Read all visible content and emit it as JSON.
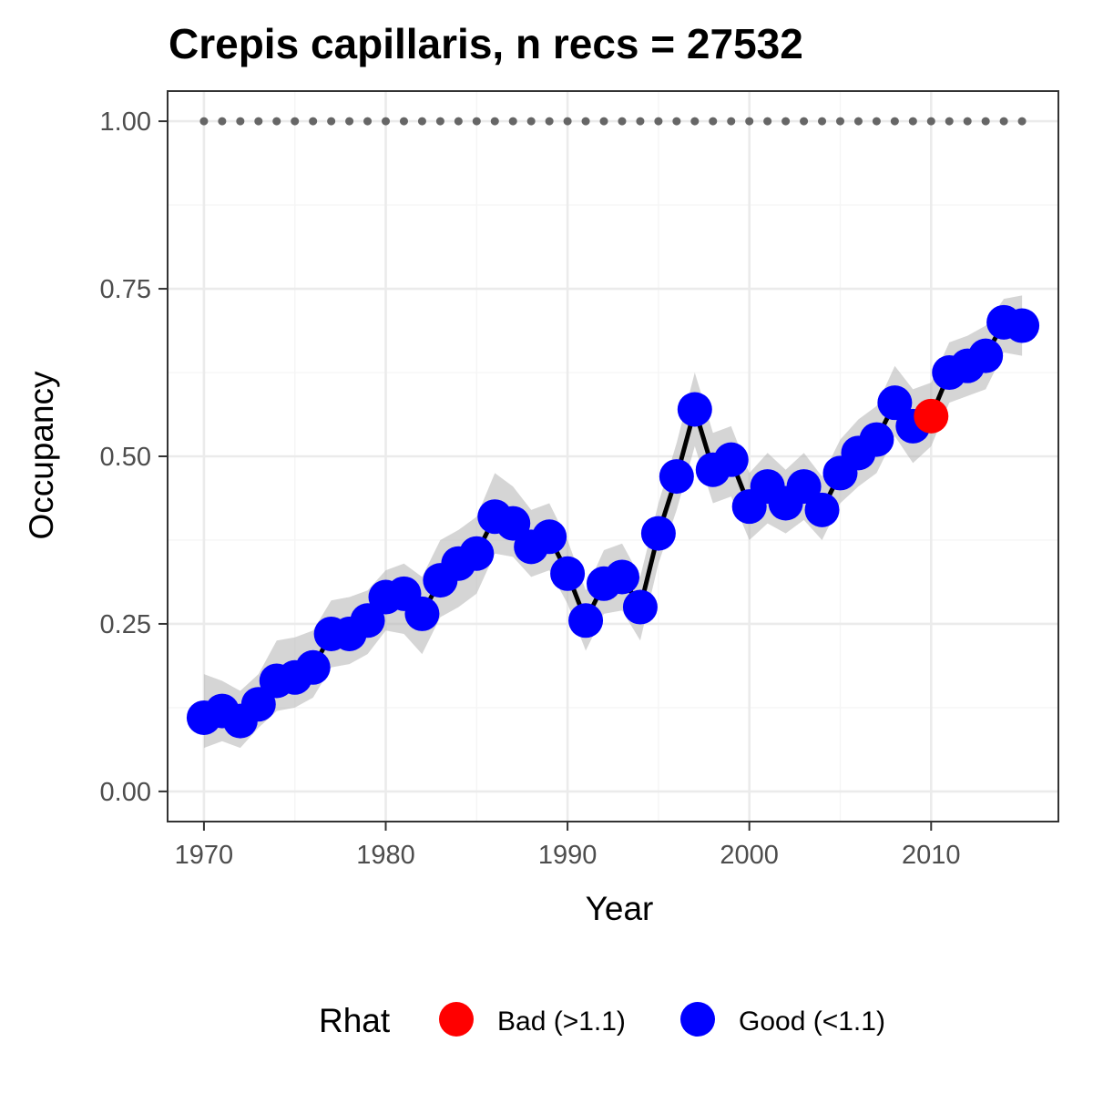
{
  "chart_data": {
    "type": "line",
    "title": "Crepis capillaris, n recs = 27532",
    "xlabel": "Year",
    "ylabel": "Occupancy",
    "xlim": [
      1968,
      2017
    ],
    "ylim": [
      -0.045,
      1.045
    ],
    "x_ticks": [
      "1970",
      "1980",
      "1990",
      "2000",
      "2010"
    ],
    "y_ticks": [
      "0.00",
      "0.25",
      "0.50",
      "0.75",
      "1.00"
    ],
    "grid": true,
    "legend": {
      "title": "Rhat",
      "position": "bottom",
      "entries": [
        {
          "label": "Bad (>1.1)",
          "color": "#ff0000"
        },
        {
          "label": "Good (<1.1)",
          "color": "#0000ff"
        }
      ]
    },
    "reference_line": {
      "y": 1.0,
      "style": "dotted",
      "color": "#666666"
    },
    "series": [
      {
        "x": [
          1970,
          1971,
          1972,
          1973,
          1974,
          1975,
          1976,
          1977,
          1978,
          1979,
          1980,
          1981,
          1982,
          1983,
          1984,
          1985,
          1986,
          1987,
          1988,
          1989,
          1990,
          1991,
          1992,
          1993,
          1994,
          1995,
          1996,
          1997,
          1998,
          1999,
          2000,
          2001,
          2002,
          2003,
          2004,
          2005,
          2006,
          2007,
          2008,
          2009,
          2010,
          2011,
          2012,
          2013,
          2014,
          2015
        ],
        "y": [
          0.11,
          0.12,
          0.105,
          0.13,
          0.165,
          0.17,
          0.185,
          0.235,
          0.235,
          0.255,
          0.29,
          0.295,
          0.265,
          0.315,
          0.34,
          0.355,
          0.41,
          0.4,
          0.365,
          0.38,
          0.325,
          0.255,
          0.31,
          0.32,
          0.275,
          0.385,
          0.47,
          0.57,
          0.48,
          0.495,
          0.425,
          0.455,
          0.43,
          0.455,
          0.42,
          0.475,
          0.505,
          0.525,
          0.58,
          0.545,
          0.56,
          0.625,
          0.635,
          0.65,
          0.7,
          0.695
        ],
        "lower": [
          0.065,
          0.075,
          0.065,
          0.095,
          0.12,
          0.125,
          0.14,
          0.185,
          0.19,
          0.205,
          0.24,
          0.235,
          0.205,
          0.26,
          0.275,
          0.295,
          0.355,
          0.35,
          0.32,
          0.33,
          0.28,
          0.21,
          0.265,
          0.27,
          0.225,
          0.34,
          0.42,
          0.515,
          0.43,
          0.44,
          0.375,
          0.4,
          0.385,
          0.405,
          0.375,
          0.43,
          0.455,
          0.475,
          0.53,
          0.49,
          0.515,
          0.58,
          0.59,
          0.6,
          0.655,
          0.65
        ],
        "upper": [
          0.175,
          0.165,
          0.15,
          0.175,
          0.225,
          0.23,
          0.24,
          0.285,
          0.29,
          0.3,
          0.33,
          0.34,
          0.32,
          0.375,
          0.39,
          0.41,
          0.475,
          0.455,
          0.42,
          0.43,
          0.375,
          0.3,
          0.36,
          0.37,
          0.32,
          0.43,
          0.52,
          0.625,
          0.535,
          0.545,
          0.475,
          0.505,
          0.48,
          0.505,
          0.47,
          0.525,
          0.555,
          0.575,
          0.635,
          0.6,
          0.61,
          0.67,
          0.68,
          0.695,
          0.735,
          0.74
        ],
        "rhat": [
          "Good",
          "Good",
          "Good",
          "Good",
          "Good",
          "Good",
          "Good",
          "Good",
          "Good",
          "Good",
          "Good",
          "Good",
          "Good",
          "Good",
          "Good",
          "Good",
          "Good",
          "Good",
          "Good",
          "Good",
          "Good",
          "Good",
          "Good",
          "Good",
          "Good",
          "Good",
          "Good",
          "Good",
          "Good",
          "Good",
          "Good",
          "Good",
          "Good",
          "Good",
          "Good",
          "Good",
          "Good",
          "Good",
          "Good",
          "Good",
          "Bad",
          "Good",
          "Good",
          "Good",
          "Good",
          "Good"
        ]
      }
    ]
  },
  "colors": {
    "good": "#0000ff",
    "bad": "#ff0000",
    "ribbon": "#b3b3b3",
    "line": "#000000",
    "reference": "#666666",
    "grid_major": "#ebebeb",
    "grid_minor": "#f5f5f5",
    "border": "#333333"
  }
}
